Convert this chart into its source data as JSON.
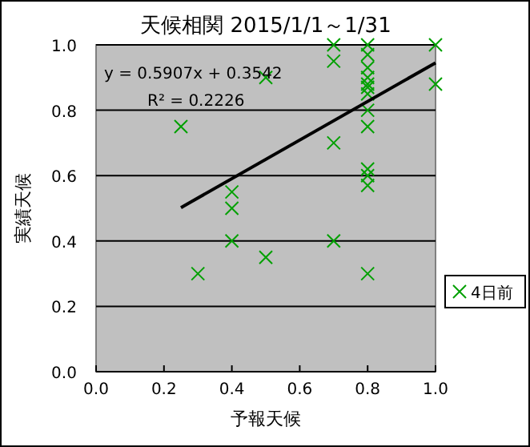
{
  "chart_data": {
    "type": "scatter",
    "title": "天候相関 2015/1/1～1/31",
    "xlabel": "予報天候",
    "ylabel": "実績天候",
    "annotations": [
      "y = 0.5907x + 0.3542",
      "R² = 0.2226"
    ],
    "xlim": [
      0,
      1
    ],
    "ylim": [
      0,
      1
    ],
    "xticks": [
      {
        "value": 0,
        "label": "0.0"
      },
      {
        "value": 0.2,
        "label": "0.2"
      },
      {
        "value": 0.4,
        "label": "0.4"
      },
      {
        "value": 0.6,
        "label": "0.6"
      },
      {
        "value": 0.8,
        "label": "0.8"
      },
      {
        "value": 1,
        "label": "1.0"
      }
    ],
    "yticks": [
      {
        "value": 0,
        "label": "0.0"
      },
      {
        "value": 0.2,
        "label": "0.2"
      },
      {
        "value": 0.4,
        "label": "0.4"
      },
      {
        "value": 0.6,
        "label": "0.6"
      },
      {
        "value": 0.8,
        "label": "0.8"
      },
      {
        "value": 1,
        "label": "1.0"
      }
    ],
    "grid": "y",
    "legend": "right",
    "marker": "cross",
    "series": [
      {
        "name": "4日前",
        "color": "#00a000",
        "x": [
          0.25,
          0.3,
          0.4,
          0.4,
          0.4,
          0.5,
          0.5,
          0.7,
          0.7,
          0.7,
          0.7,
          0.8,
          0.8,
          0.8,
          0.8,
          0.8,
          0.8,
          0.8,
          0.8,
          0.8,
          0.8,
          0.8,
          0.8,
          0.8,
          1,
          1
        ],
        "values": [
          0.75,
          0.3,
          0.55,
          0.5,
          0.4,
          0.9,
          0.35,
          1,
          0.95,
          0.7,
          0.4,
          1,
          0.97,
          0.93,
          0.9,
          0.88,
          0.87,
          0.85,
          0.8,
          0.75,
          0.62,
          0.6,
          0.57,
          0.3,
          1,
          0.88
        ]
      },
      {
        "type": "line",
        "color": "#000000",
        "marker": "none",
        "x": [
          0.25,
          1
        ],
        "values": [
          0.502,
          0.945
        ]
      }
    ]
  }
}
